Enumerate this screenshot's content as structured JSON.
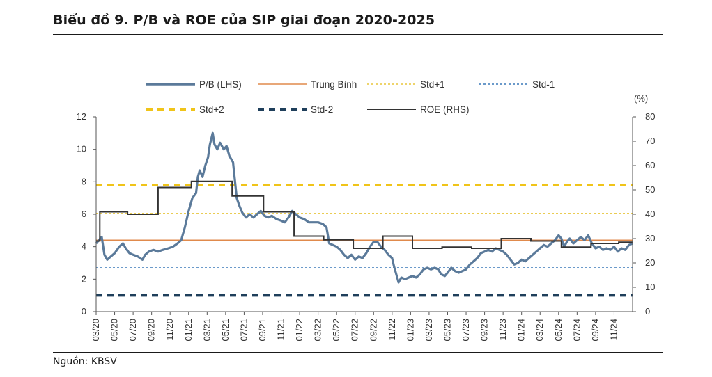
{
  "title": "Biểu đồ 9. P/B và ROE của SIP giai đoạn 2020-2025",
  "source": "Nguồn: KBSV",
  "chart_data": {
    "type": "line",
    "title": "Biểu đồ 9. P/B và ROE của SIP giai đoạn 2020-2025",
    "left_axis": {
      "min": 0,
      "max": 12,
      "ticks": [
        0,
        2,
        4,
        6,
        8,
        10,
        12
      ]
    },
    "right_axis": {
      "label": "(%)",
      "min": 0,
      "max": 80,
      "ticks": [
        0,
        10,
        20,
        30,
        40,
        50,
        60,
        70,
        80
      ]
    },
    "x_tick_labels": [
      "03/20",
      "05/20",
      "07/20",
      "09/20",
      "11/20",
      "01/21",
      "03/21",
      "05/21",
      "07/21",
      "09/21",
      "11/21",
      "01/22",
      "03/22",
      "05/22",
      "07/22",
      "09/22",
      "11/22",
      "01/23",
      "03/23",
      "05/23",
      "07/23",
      "09/23",
      "11/23",
      "01/24",
      "03/24",
      "05/24",
      "07/24",
      "09/24",
      "11/24"
    ],
    "x_months_range": [
      0,
      58
    ],
    "legend": [
      {
        "name": "P/B (LHS)",
        "style": "solid-thick",
        "color": "#5b7a9a"
      },
      {
        "name": "Trung Bình",
        "style": "solid-thin",
        "color": "#e08a4c"
      },
      {
        "name": "Std+1",
        "style": "dotted-thin",
        "color": "#e8c53a"
      },
      {
        "name": "Std-1",
        "style": "dotted-thin",
        "color": "#3a78b8"
      },
      {
        "name": "Std+2",
        "style": "dashed-thick",
        "color": "#f0c419"
      },
      {
        "name": "Std-2",
        "style": "dashed-thick",
        "color": "#1f3f5b"
      },
      {
        "name": "ROE (RHS)",
        "style": "solid-medium",
        "color": "#333333"
      }
    ],
    "reference_lines": {
      "mean": 4.4,
      "std_plus_1": 6.05,
      "std_minus_1": 2.7,
      "std_plus_2": 7.8,
      "std_minus_2": 1.0
    },
    "pb_series": {
      "name": "P/B (LHS)",
      "points": [
        [
          0.0,
          4.2
        ],
        [
          0.3,
          4.4
        ],
        [
          0.6,
          4.6
        ],
        [
          0.9,
          3.5
        ],
        [
          1.2,
          3.2
        ],
        [
          1.6,
          3.4
        ],
        [
          2.0,
          3.6
        ],
        [
          2.5,
          4.0
        ],
        [
          2.9,
          4.2
        ],
        [
          3.2,
          3.9
        ],
        [
          3.6,
          3.6
        ],
        [
          4.0,
          3.5
        ],
        [
          4.5,
          3.4
        ],
        [
          5.0,
          3.2
        ],
        [
          5.3,
          3.5
        ],
        [
          5.7,
          3.7
        ],
        [
          6.2,
          3.8
        ],
        [
          6.7,
          3.7
        ],
        [
          7.2,
          3.8
        ],
        [
          7.8,
          3.9
        ],
        [
          8.3,
          4.0
        ],
        [
          8.8,
          4.2
        ],
        [
          9.2,
          4.4
        ],
        [
          9.6,
          5.2
        ],
        [
          10.0,
          6.2
        ],
        [
          10.4,
          7.0
        ],
        [
          10.8,
          7.3
        ],
        [
          11.0,
          8.3
        ],
        [
          11.2,
          8.7
        ],
        [
          11.5,
          8.3
        ],
        [
          11.8,
          9.0
        ],
        [
          12.1,
          9.5
        ],
        [
          12.3,
          10.3
        ],
        [
          12.6,
          11.0
        ],
        [
          12.8,
          10.3
        ],
        [
          13.1,
          10.0
        ],
        [
          13.4,
          10.4
        ],
        [
          13.8,
          10.0
        ],
        [
          14.1,
          10.2
        ],
        [
          14.4,
          9.6
        ],
        [
          14.8,
          9.2
        ],
        [
          15.2,
          7.0
        ],
        [
          15.5,
          6.5
        ],
        [
          15.8,
          6.1
        ],
        [
          16.2,
          5.8
        ],
        [
          16.6,
          6.0
        ],
        [
          17.0,
          5.8
        ],
        [
          17.4,
          6.0
        ],
        [
          17.8,
          6.2
        ],
        [
          18.2,
          5.9
        ],
        [
          18.6,
          5.8
        ],
        [
          19.0,
          5.9
        ],
        [
          19.5,
          5.7
        ],
        [
          20.0,
          5.6
        ],
        [
          20.4,
          5.5
        ],
        [
          20.8,
          5.8
        ],
        [
          21.2,
          6.2
        ],
        [
          21.6,
          6.0
        ],
        [
          22.0,
          5.8
        ],
        [
          22.5,
          5.7
        ],
        [
          23.0,
          5.5
        ],
        [
          23.5,
          5.5
        ],
        [
          24.0,
          5.5
        ],
        [
          24.5,
          5.4
        ],
        [
          24.9,
          5.2
        ],
        [
          25.2,
          4.2
        ],
        [
          25.6,
          4.1
        ],
        [
          26.0,
          4.0
        ],
        [
          26.4,
          3.8
        ],
        [
          26.8,
          3.5
        ],
        [
          27.2,
          3.3
        ],
        [
          27.6,
          3.5
        ],
        [
          28.0,
          3.2
        ],
        [
          28.4,
          3.4
        ],
        [
          28.8,
          3.3
        ],
        [
          29.2,
          3.6
        ],
        [
          29.6,
          4.0
        ],
        [
          30.0,
          4.3
        ],
        [
          30.4,
          4.3
        ],
        [
          30.8,
          4.0
        ],
        [
          31.2,
          3.8
        ],
        [
          31.6,
          3.5
        ],
        [
          32.0,
          3.3
        ],
        [
          32.2,
          2.8
        ],
        [
          32.5,
          2.2
        ],
        [
          32.7,
          1.8
        ],
        [
          33.0,
          2.1
        ],
        [
          33.4,
          2.0
        ],
        [
          33.8,
          2.1
        ],
        [
          34.2,
          2.2
        ],
        [
          34.6,
          2.1
        ],
        [
          35.0,
          2.3
        ],
        [
          35.4,
          2.6
        ],
        [
          35.8,
          2.7
        ],
        [
          36.2,
          2.6
        ],
        [
          36.6,
          2.7
        ],
        [
          37.0,
          2.6
        ],
        [
          37.3,
          2.3
        ],
        [
          37.7,
          2.2
        ],
        [
          38.0,
          2.4
        ],
        [
          38.4,
          2.7
        ],
        [
          38.8,
          2.5
        ],
        [
          39.2,
          2.4
        ],
        [
          39.6,
          2.5
        ],
        [
          40.0,
          2.6
        ],
        [
          40.4,
          2.9
        ],
        [
          40.8,
          3.1
        ],
        [
          41.2,
          3.3
        ],
        [
          41.6,
          3.6
        ],
        [
          42.0,
          3.7
        ],
        [
          42.4,
          3.8
        ],
        [
          42.8,
          3.7
        ],
        [
          43.2,
          3.9
        ],
        [
          43.6,
          3.8
        ],
        [
          44.0,
          3.7
        ],
        [
          44.4,
          3.5
        ],
        [
          44.8,
          3.2
        ],
        [
          45.2,
          2.9
        ],
        [
          45.6,
          3.0
        ],
        [
          46.0,
          3.2
        ],
        [
          46.4,
          3.1
        ],
        [
          46.8,
          3.3
        ],
        [
          47.2,
          3.5
        ],
        [
          47.6,
          3.7
        ],
        [
          48.0,
          3.9
        ],
        [
          48.4,
          4.1
        ],
        [
          48.8,
          4.0
        ],
        [
          49.2,
          4.2
        ],
        [
          49.6,
          4.4
        ],
        [
          50.0,
          4.7
        ],
        [
          50.3,
          4.5
        ],
        [
          50.6,
          4.0
        ],
        [
          50.9,
          4.3
        ],
        [
          51.2,
          4.5
        ],
        [
          51.6,
          4.2
        ],
        [
          52.0,
          4.4
        ],
        [
          52.4,
          4.6
        ],
        [
          52.8,
          4.4
        ],
        [
          53.2,
          4.7
        ],
        [
          53.6,
          4.2
        ],
        [
          54.0,
          3.9
        ],
        [
          54.4,
          4.0
        ],
        [
          54.8,
          3.8
        ],
        [
          55.2,
          3.9
        ],
        [
          55.6,
          3.8
        ],
        [
          56.0,
          4.0
        ],
        [
          56.4,
          3.7
        ],
        [
          56.8,
          3.9
        ],
        [
          57.2,
          3.8
        ],
        [
          57.6,
          4.1
        ],
        [
          58.0,
          4.2
        ]
      ]
    },
    "roe_series": {
      "name": "ROE (RHS)",
      "points": [
        [
          0.0,
          29
        ],
        [
          0.4,
          29
        ],
        [
          0.4,
          41
        ],
        [
          3.4,
          41
        ],
        [
          3.4,
          40
        ],
        [
          6.7,
          40
        ],
        [
          6.7,
          51
        ],
        [
          10.3,
          51
        ],
        [
          10.3,
          53.5
        ],
        [
          14.7,
          53.5
        ],
        [
          14.7,
          47.5
        ],
        [
          18.1,
          47.5
        ],
        [
          18.1,
          41
        ],
        [
          21.4,
          41
        ],
        [
          21.4,
          31
        ],
        [
          24.6,
          31
        ],
        [
          24.6,
          29.5
        ],
        [
          27.8,
          29.5
        ],
        [
          27.8,
          26
        ],
        [
          31.0,
          26
        ],
        [
          31.0,
          31
        ],
        [
          34.2,
          31
        ],
        [
          34.2,
          26
        ],
        [
          37.4,
          26
        ],
        [
          37.4,
          26.5
        ],
        [
          40.6,
          26.5
        ],
        [
          40.6,
          26
        ],
        [
          43.8,
          26
        ],
        [
          43.8,
          30
        ],
        [
          47.0,
          30
        ],
        [
          47.0,
          29
        ],
        [
          50.3,
          29
        ],
        [
          50.3,
          26.5
        ],
        [
          53.5,
          26.5
        ],
        [
          53.5,
          28
        ],
        [
          56.5,
          28
        ],
        [
          56.5,
          28.5
        ],
        [
          58.0,
          28.5
        ]
      ]
    }
  }
}
